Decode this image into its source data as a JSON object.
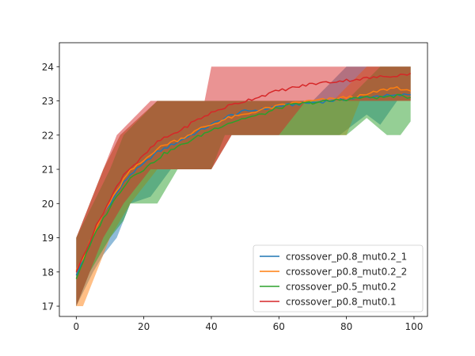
{
  "chart_data": {
    "type": "line",
    "title": "",
    "xlabel": "",
    "ylabel": "",
    "xlim": [
      -5,
      104
    ],
    "ylim": [
      16.7,
      24.7
    ],
    "x_ticks": [
      0,
      20,
      40,
      60,
      80,
      100
    ],
    "y_ticks": [
      17,
      18,
      19,
      20,
      21,
      22,
      23,
      24
    ],
    "grid": false,
    "legend_position": "lower-right",
    "x_range": [
      0,
      99
    ],
    "series": [
      {
        "name": "crossover_p0.8_mut0.2_1",
        "color": "#1f77b4",
        "keypoints": [
          [
            0,
            17.9
          ],
          [
            2,
            18.35
          ],
          [
            4,
            18.8
          ],
          [
            6,
            19.3
          ],
          [
            8,
            19.7
          ],
          [
            10,
            20.0
          ],
          [
            12,
            20.3
          ],
          [
            14,
            20.6
          ],
          [
            16,
            20.85
          ],
          [
            18,
            21.0
          ],
          [
            20,
            21.15
          ],
          [
            22,
            21.35
          ],
          [
            24,
            21.5
          ],
          [
            26,
            21.6
          ],
          [
            28,
            21.7
          ],
          [
            30,
            21.8
          ],
          [
            32,
            21.9
          ],
          [
            34,
            22.0
          ],
          [
            36,
            22.1
          ],
          [
            38,
            22.2
          ],
          [
            40,
            22.3
          ],
          [
            45,
            22.55
          ],
          [
            50,
            22.7
          ],
          [
            55,
            22.75
          ],
          [
            60,
            22.85
          ],
          [
            65,
            22.9
          ],
          [
            70,
            22.95
          ],
          [
            75,
            23.0
          ],
          [
            80,
            23.05
          ],
          [
            85,
            23.1
          ],
          [
            90,
            23.15
          ],
          [
            95,
            23.15
          ],
          [
            99,
            23.2
          ]
        ],
        "band": {
          "lower": [
            [
              0,
              17
            ],
            [
              5,
              18
            ],
            [
              8,
              18.5
            ],
            [
              12,
              19
            ],
            [
              16,
              20
            ],
            [
              22,
              20.2
            ],
            [
              28,
              21
            ],
            [
              40,
              21
            ],
            [
              46,
              22
            ],
            [
              78,
              22
            ],
            [
              82,
              22.3
            ],
            [
              86,
              22.6
            ],
            [
              90,
              22.3
            ],
            [
              95,
              23
            ],
            [
              99,
              23
            ]
          ],
          "upper": [
            [
              0,
              19
            ],
            [
              4,
              20
            ],
            [
              8,
              21
            ],
            [
              13,
              22
            ],
            [
              24,
              23
            ],
            [
              40,
              23
            ],
            [
              56,
              23
            ],
            [
              70,
              23
            ],
            [
              80,
              24
            ],
            [
              99,
              24
            ]
          ]
        }
      },
      {
        "name": "crossover_p0.8_mut0.2_2",
        "color": "#ff7f0e",
        "keypoints": [
          [
            0,
            18.05
          ],
          [
            2,
            18.4
          ],
          [
            4,
            18.85
          ],
          [
            6,
            19.3
          ],
          [
            8,
            19.7
          ],
          [
            10,
            20.05
          ],
          [
            12,
            20.35
          ],
          [
            14,
            20.7
          ],
          [
            16,
            20.95
          ],
          [
            18,
            21.1
          ],
          [
            20,
            21.25
          ],
          [
            22,
            21.45
          ],
          [
            24,
            21.6
          ],
          [
            26,
            21.7
          ],
          [
            28,
            21.8
          ],
          [
            30,
            21.85
          ],
          [
            32,
            21.95
          ],
          [
            34,
            22.05
          ],
          [
            36,
            22.15
          ],
          [
            38,
            22.25
          ],
          [
            40,
            22.3
          ],
          [
            45,
            22.5
          ],
          [
            50,
            22.6
          ],
          [
            55,
            22.75
          ],
          [
            60,
            22.85
          ],
          [
            65,
            22.95
          ],
          [
            70,
            23.0
          ],
          [
            75,
            23.05
          ],
          [
            80,
            23.1
          ],
          [
            85,
            23.15
          ],
          [
            90,
            23.3
          ],
          [
            95,
            23.4
          ],
          [
            99,
            23.25
          ]
        ],
        "band": {
          "lower": [
            [
              0,
              17
            ],
            [
              2,
              17
            ],
            [
              6,
              18
            ],
            [
              10,
              19
            ],
            [
              16,
              20
            ],
            [
              24,
              21
            ],
            [
              40,
              21
            ],
            [
              46,
              22
            ],
            [
              80,
              22
            ],
            [
              84,
              23
            ],
            [
              99,
              23
            ]
          ],
          "upper": [
            [
              0,
              19
            ],
            [
              4,
              20
            ],
            [
              8,
              21
            ],
            [
              13,
              22
            ],
            [
              24,
              23
            ],
            [
              56,
              23
            ],
            [
              76,
              23
            ],
            [
              86,
              24
            ],
            [
              99,
              24
            ]
          ]
        }
      },
      {
        "name": "crossover_p0.5_mut0.2",
        "color": "#2ca02c",
        "keypoints": [
          [
            0,
            17.8
          ],
          [
            2,
            18.3
          ],
          [
            4,
            18.75
          ],
          [
            6,
            19.2
          ],
          [
            8,
            19.55
          ],
          [
            10,
            19.9
          ],
          [
            12,
            20.2
          ],
          [
            14,
            20.5
          ],
          [
            16,
            20.75
          ],
          [
            18,
            20.9
          ],
          [
            20,
            21.0
          ],
          [
            22,
            21.15
          ],
          [
            24,
            21.3
          ],
          [
            26,
            21.45
          ],
          [
            28,
            21.55
          ],
          [
            30,
            21.65
          ],
          [
            32,
            21.75
          ],
          [
            34,
            21.85
          ],
          [
            36,
            21.95
          ],
          [
            38,
            22.05
          ],
          [
            40,
            22.15
          ],
          [
            45,
            22.35
          ],
          [
            50,
            22.5
          ],
          [
            55,
            22.6
          ],
          [
            60,
            22.8
          ],
          [
            65,
            22.9
          ],
          [
            70,
            22.95
          ],
          [
            75,
            23.0
          ],
          [
            80,
            23.05
          ],
          [
            85,
            23.1
          ],
          [
            90,
            23.1
          ],
          [
            95,
            23.15
          ],
          [
            99,
            23.1
          ]
        ],
        "band": {
          "lower": [
            [
              0,
              17
            ],
            [
              4,
              18
            ],
            [
              10,
              19
            ],
            [
              14,
              19.5
            ],
            [
              16,
              20
            ],
            [
              24,
              20
            ],
            [
              30,
              21
            ],
            [
              40,
              21
            ],
            [
              44,
              22
            ],
            [
              80,
              22
            ],
            [
              86,
              22.5
            ],
            [
              92,
              22
            ],
            [
              96,
              22
            ],
            [
              99,
              22.4
            ]
          ],
          "upper": [
            [
              0,
              19
            ],
            [
              5,
              20
            ],
            [
              10,
              21
            ],
            [
              14,
              22
            ],
            [
              24,
              23
            ],
            [
              56,
              23
            ],
            [
              80,
              23
            ],
            [
              90,
              24
            ],
            [
              99,
              24
            ]
          ]
        }
      },
      {
        "name": "crossover_p0.8_mut0.1",
        "color": "#d62728",
        "keypoints": [
          [
            0,
            18.0
          ],
          [
            2,
            18.45
          ],
          [
            4,
            18.9
          ],
          [
            6,
            19.35
          ],
          [
            8,
            19.75
          ],
          [
            10,
            20.1
          ],
          [
            12,
            20.5
          ],
          [
            14,
            20.85
          ],
          [
            16,
            21.05
          ],
          [
            18,
            21.2
          ],
          [
            20,
            21.4
          ],
          [
            22,
            21.6
          ],
          [
            24,
            21.8
          ],
          [
            26,
            21.9
          ],
          [
            28,
            22.0
          ],
          [
            30,
            22.1
          ],
          [
            32,
            22.2
          ],
          [
            34,
            22.35
          ],
          [
            36,
            22.45
          ],
          [
            38,
            22.55
          ],
          [
            40,
            22.65
          ],
          [
            45,
            22.85
          ],
          [
            50,
            23.0
          ],
          [
            55,
            23.15
          ],
          [
            60,
            23.3
          ],
          [
            65,
            23.4
          ],
          [
            70,
            23.5
          ],
          [
            75,
            23.55
          ],
          [
            80,
            23.6
          ],
          [
            85,
            23.65
          ],
          [
            90,
            23.7
          ],
          [
            95,
            23.75
          ],
          [
            99,
            23.8
          ]
        ],
        "band": {
          "lower": [
            [
              0,
              17
            ],
            [
              4,
              18
            ],
            [
              8,
              19
            ],
            [
              14,
              20
            ],
            [
              22,
              21
            ],
            [
              40,
              21
            ],
            [
              46,
              22
            ],
            [
              60,
              22
            ],
            [
              68,
              23
            ],
            [
              99,
              23
            ]
          ],
          "upper": [
            [
              0,
              19
            ],
            [
              4,
              20
            ],
            [
              8,
              21
            ],
            [
              12,
              22
            ],
            [
              22,
              23
            ],
            [
              38,
              23
            ],
            [
              40,
              24
            ],
            [
              99,
              24
            ]
          ]
        }
      }
    ]
  }
}
